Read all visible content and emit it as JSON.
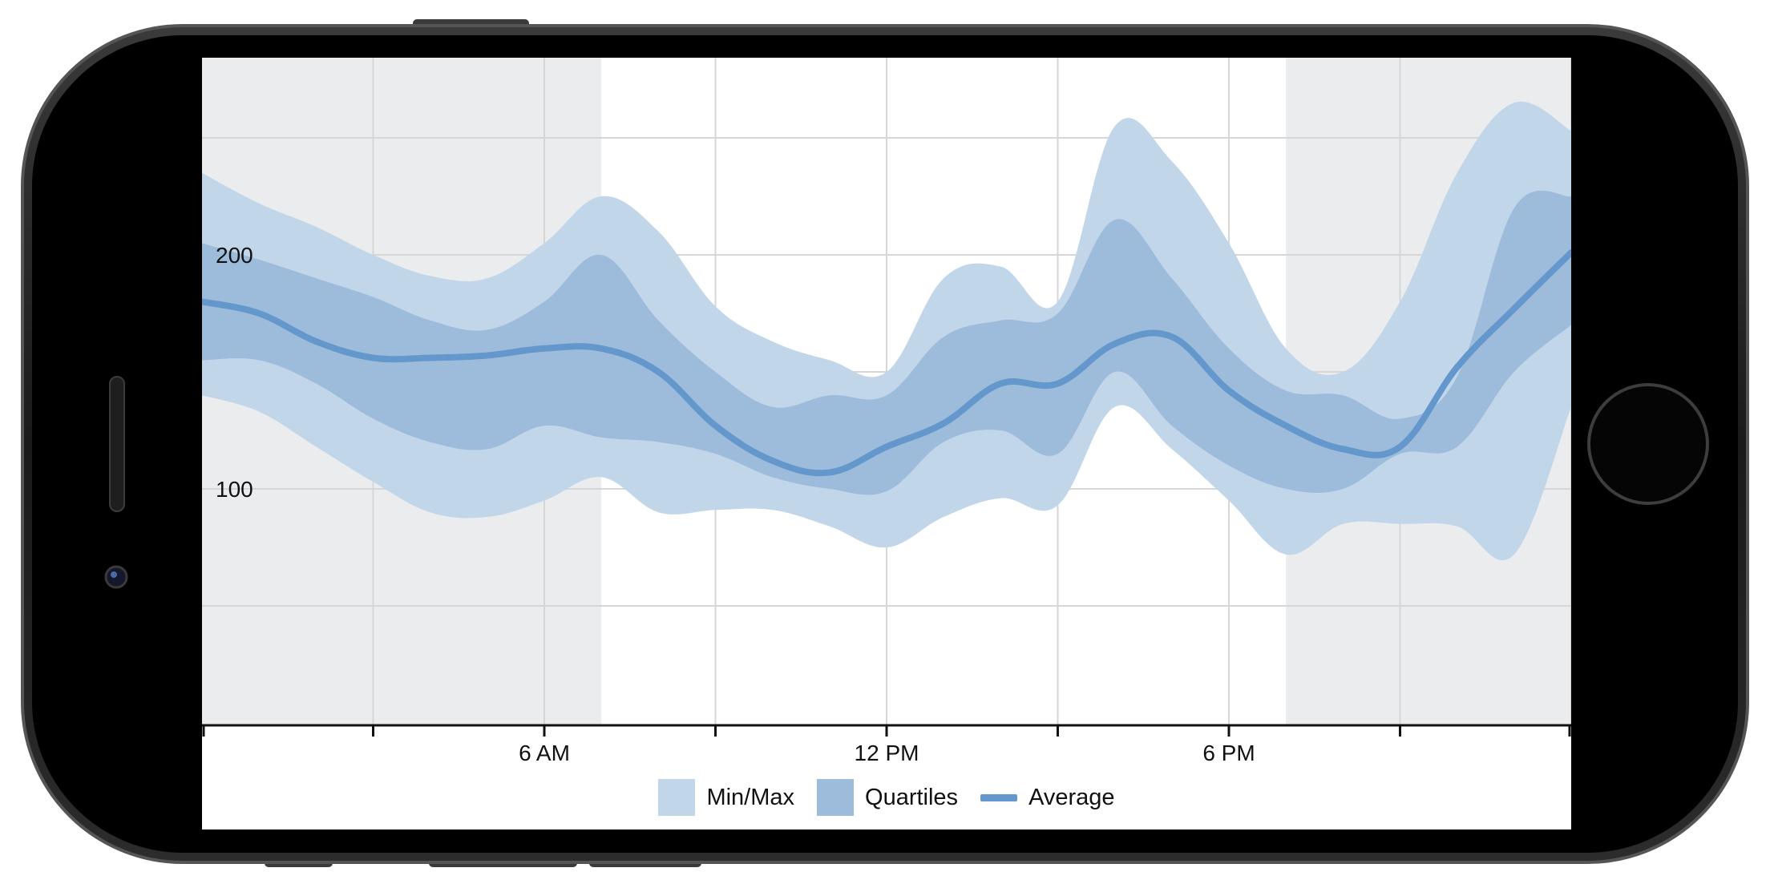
{
  "colors": {
    "minmax": "#c2d6ea",
    "quartiles": "#9dbcdb",
    "average": "#6497cc",
    "night_shade": "#ebeced",
    "grid": "#d6d6d6",
    "axis": "#111111"
  },
  "legend": {
    "minmax_label": "Min/Max",
    "quartiles_label": "Quartiles",
    "average_label": "Average"
  },
  "chart_data": {
    "type": "area",
    "title": "",
    "xlabel": "",
    "ylabel": "",
    "x_range_hours": [
      0,
      24
    ],
    "ylim": [
      0,
      250
    ],
    "x_ticks": [
      {
        "hour": 6,
        "label": "6 AM"
      },
      {
        "hour": 12,
        "label": "12 PM"
      },
      {
        "hour": 18,
        "label": "6 PM"
      }
    ],
    "x_gridlines_hours": [
      3,
      6,
      9,
      12,
      15,
      18,
      21,
      24
    ],
    "y_ticks": [
      {
        "value": 200,
        "label": "200"
      },
      {
        "value": 100,
        "label": "100"
      }
    ],
    "y_gridlines": [
      50,
      100,
      150,
      200,
      250
    ],
    "night_shading_hours": [
      [
        0,
        7
      ],
      [
        19,
        24
      ]
    ],
    "grid": true,
    "legend_position": "bottom",
    "x_hours": [
      0,
      1,
      2,
      3,
      4,
      5,
      6,
      7,
      8,
      9,
      10,
      11,
      12,
      13,
      14,
      15,
      16,
      17,
      18,
      19,
      20,
      21,
      22,
      23,
      24
    ],
    "series": [
      {
        "name": "Min/Max",
        "kind": "band",
        "upper": [
          235,
          222,
          212,
          200,
          191,
          190,
          205,
          225,
          210,
          178,
          163,
          155,
          150,
          190,
          195,
          180,
          255,
          240,
          205,
          160,
          150,
          180,
          235,
          265,
          253
        ],
        "lower": [
          140,
          133,
          118,
          103,
          90,
          88,
          95,
          105,
          90,
          91,
          91,
          84,
          75,
          88,
          96,
          93,
          135,
          117,
          95,
          72,
          85,
          85,
          84,
          72,
          135
        ]
      },
      {
        "name": "Quartiles",
        "kind": "band",
        "upper": [
          205,
          198,
          190,
          182,
          172,
          168,
          180,
          200,
          172,
          150,
          135,
          140,
          140,
          165,
          172,
          175,
          215,
          190,
          160,
          142,
          140,
          130,
          148,
          220,
          225
        ],
        "lower": [
          155,
          155,
          145,
          130,
          120,
          117,
          127,
          122,
          120,
          115,
          105,
          100,
          99,
          120,
          125,
          115,
          150,
          127,
          110,
          100,
          100,
          115,
          118,
          150,
          170
        ]
      },
      {
        "name": "Average",
        "kind": "line",
        "values": [
          180,
          175,
          163,
          156,
          156,
          157,
          160,
          160,
          150,
          127,
          112,
          107,
          118,
          128,
          145,
          145,
          162,
          165,
          142,
          127,
          117,
          118,
          152,
          177,
          201
        ]
      }
    ]
  }
}
